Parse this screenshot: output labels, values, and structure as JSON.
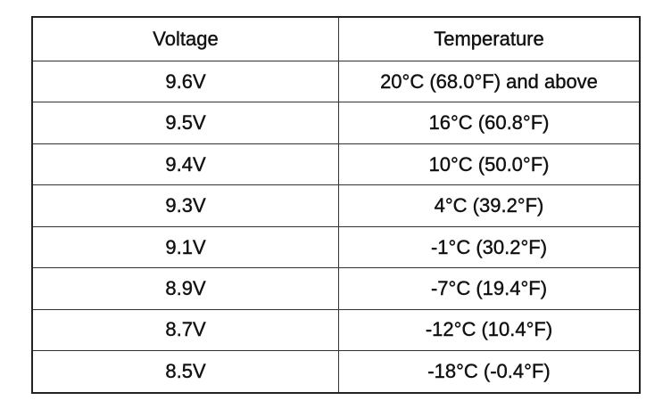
{
  "table": {
    "header": [
      "Voltage",
      "Temperature"
    ],
    "rows": [
      [
        "9.6V",
        "20°C (68.0°F) and above"
      ],
      [
        "9.5V",
        "16°C (60.8°F)"
      ],
      [
        "9.4V",
        "10°C (50.0°F)"
      ],
      [
        "9.3V",
        "4°C (39.2°F)"
      ],
      [
        "9.1V",
        "-1°C (30.2°F)"
      ],
      [
        "8.9V",
        "-7°C (19.4°F)"
      ],
      [
        "8.7V",
        "-12°C (10.4°F)"
      ],
      [
        "8.5V",
        "-18°C (-0.4°F)"
      ]
    ]
  }
}
